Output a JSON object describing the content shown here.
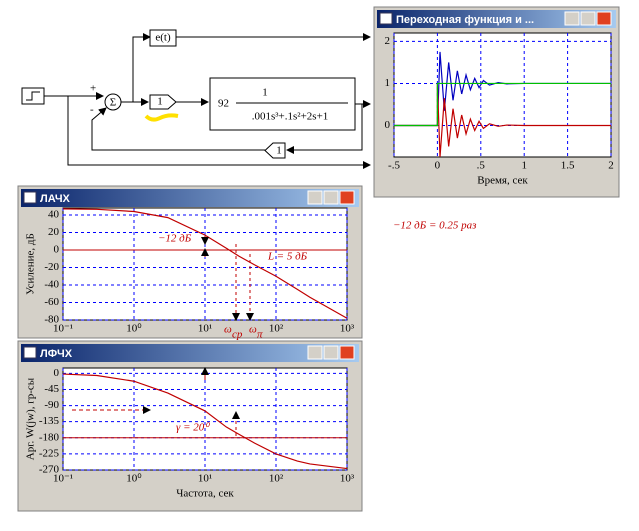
{
  "diagram": {
    "output_label": "e(t)",
    "gain": "1",
    "plant_gain": "92",
    "plant_num": "1",
    "plant_den": ".001s³+.1s²+2s+1",
    "feedback": "1",
    "sum": "Σ",
    "sign_plus": "+",
    "sign_minus": "-"
  },
  "note": "−12 дБ = 0.25 раз",
  "chart_data": [
    {
      "type": "line",
      "title": "Переходная функция и ...",
      "xlabel": "Время, сек",
      "xlim": [
        -0.5,
        2
      ],
      "ylim": [
        -0.75,
        2.2
      ],
      "xticks": [
        {
          "value": -0.5,
          "label": "-.5"
        },
        0,
        {
          "value": 0.5,
          "label": ".5"
        },
        1,
        1.5,
        2
      ],
      "yticks": [
        0,
        1,
        2
      ],
      "grid": true,
      "series": [
        {
          "color": "#0000c0",
          "x": [
            -0.5,
            0,
            0,
            0.03,
            0.08,
            0.13,
            0.18,
            0.23,
            0.28,
            0.33,
            0.38,
            0.43,
            0.48,
            0.53,
            0.6,
            0.7,
            0.8,
            1,
            2
          ],
          "values": [
            0,
            0,
            0,
            1.75,
            0.35,
            1.5,
            0.6,
            1.3,
            0.75,
            1.2,
            0.85,
            1.12,
            0.9,
            1.07,
            0.96,
            1.02,
            0.99,
            1,
            1
          ]
        },
        {
          "color": "#c00000",
          "x": [
            -0.5,
            0,
            0,
            0.03,
            0.08,
            0.13,
            0.18,
            0.23,
            0.28,
            0.33,
            0.38,
            0.43,
            0.48,
            0.53,
            0.6,
            0.7,
            0.8,
            1,
            2
          ],
          "values": [
            0,
            0,
            1,
            -0.75,
            0.65,
            -0.5,
            0.4,
            -0.3,
            0.25,
            -0.2,
            0.15,
            -0.12,
            0.1,
            -0.07,
            0.04,
            -0.02,
            0.01,
            0,
            0
          ]
        },
        {
          "color": "#00c000",
          "x": [
            -0.5,
            0,
            0,
            2
          ],
          "values": [
            0,
            0,
            1,
            1
          ]
        }
      ]
    },
    {
      "type": "line",
      "title": "ЛАЧХ",
      "ylabel": "Усиление, дБ",
      "log_x": true,
      "xlim": [
        0.1,
        1000
      ],
      "ylim": [
        -80,
        48
      ],
      "xticks": [
        {
          "value": 0.1,
          "label": "10⁻¹"
        },
        {
          "value": 1,
          "label": "10⁰"
        },
        {
          "value": 10,
          "label": "10¹"
        },
        {
          "value": 100,
          "label": "10²"
        },
        {
          "value": 1000,
          "label": "10³"
        }
      ],
      "yticks": [
        40,
        20,
        0,
        -20,
        -40,
        -60,
        -80
      ],
      "grid": true,
      "hline": {
        "value": 0,
        "color": "#c00000"
      },
      "x": [
        0.1,
        0.3,
        1,
        3,
        10,
        20,
        30,
        50,
        100,
        200,
        300,
        1000
      ],
      "series": [
        {
          "color": "#c00000",
          "values": [
            47,
            46.5,
            44,
            37,
            17,
            2,
            -7,
            -17,
            -30,
            -45,
            -54,
            -78
          ]
        }
      ],
      "annotations": [
        "−12 дБ",
        "L = 5 дБ",
        {
          "symbol": "ω",
          "sub": "ср"
        },
        {
          "symbol": "ω",
          "sub": "π"
        }
      ]
    },
    {
      "type": "line",
      "title": "ЛФЧХ",
      "ylabel": "Арг. W(jw), гр-сы",
      "xlabel": "Частота, сек",
      "log_x": true,
      "xlim": [
        0.1,
        1000
      ],
      "ylim": [
        -270,
        15
      ],
      "xticks": [
        {
          "value": 0.1,
          "label": "10⁻¹"
        },
        {
          "value": 1,
          "label": "10⁰"
        },
        {
          "value": 10,
          "label": "10¹"
        },
        {
          "value": 100,
          "label": "10²"
        },
        {
          "value": 1000,
          "label": "10³"
        }
      ],
      "yticks": [
        0,
        -45,
        -90,
        -135,
        -180,
        -225,
        -270
      ],
      "grid": true,
      "hline": {
        "value": -180,
        "color": "#c00000"
      },
      "x": [
        0.1,
        0.3,
        1,
        3,
        10,
        20,
        30,
        50,
        100,
        200,
        300,
        1000
      ],
      "series": [
        {
          "color": "#c00000",
          "values": [
            -2,
            -6,
            -22,
            -55,
            -105,
            -150,
            -170,
            -195,
            -225,
            -245,
            -253,
            -266
          ]
        }
      ],
      "annotations": [
        "γ = 20⁰"
      ]
    }
  ]
}
